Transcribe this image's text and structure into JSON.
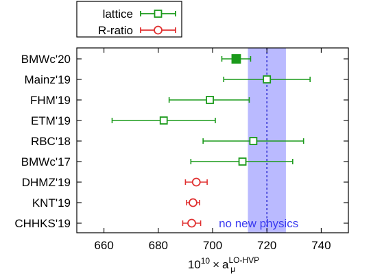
{
  "chart_data": {
    "type": "scatter",
    "xlabel_parts": {
      "base": "10",
      "exp": "10",
      "times": "×",
      "symbol": "a",
      "sub": "μ",
      "sup": "LO-HVP"
    },
    "xlim": [
      650,
      750
    ],
    "xticks": [
      660,
      680,
      700,
      720,
      740
    ],
    "categories": [
      "BMWc'20",
      "Mainz'19",
      "FHM'19",
      "ETM'19",
      "RBC'18",
      "BMWc'17",
      "DHMZ'19",
      "KNT'19",
      "CHHKS'19"
    ],
    "series": [
      {
        "name": "lattice",
        "color": "#1a9a1a",
        "marker": "square-open",
        "points": [
          {
            "label": "BMWc'20",
            "value": 708.7,
            "err_low": 5.3,
            "err_high": 5.3,
            "filled": true
          },
          {
            "label": "Mainz'19",
            "value": 720.0,
            "err_low": 15.9,
            "err_high": 15.9
          },
          {
            "label": "FHM'19",
            "value": 699.0,
            "err_low": 15.0,
            "err_high": 14.5
          },
          {
            "label": "ETM'19",
            "value": 682.0,
            "err_low": 19.0,
            "err_high": 19.0
          },
          {
            "label": "RBC'18",
            "value": 715.0,
            "err_low": 18.5,
            "err_high": 18.5
          },
          {
            "label": "BMWc'17",
            "value": 711.0,
            "err_low": 19.0,
            "err_high": 18.5
          }
        ]
      },
      {
        "name": "R-ratio",
        "color": "#e03030",
        "marker": "circle-open",
        "points": [
          {
            "label": "DHMZ'19",
            "value": 694.0,
            "err_low": 4.0,
            "err_high": 4.0
          },
          {
            "label": "KNT'19",
            "value": 692.8,
            "err_low": 2.4,
            "err_high": 2.4
          },
          {
            "label": "CHHKS'19",
            "value": 692.3,
            "err_low": 3.3,
            "err_high": 3.3
          }
        ]
      }
    ],
    "band": {
      "label": "no new physics",
      "center": 720.0,
      "low": 713.0,
      "high": 727.0,
      "color": "#6666ff"
    },
    "legend_position": "top-left, above plot",
    "grid": false
  }
}
